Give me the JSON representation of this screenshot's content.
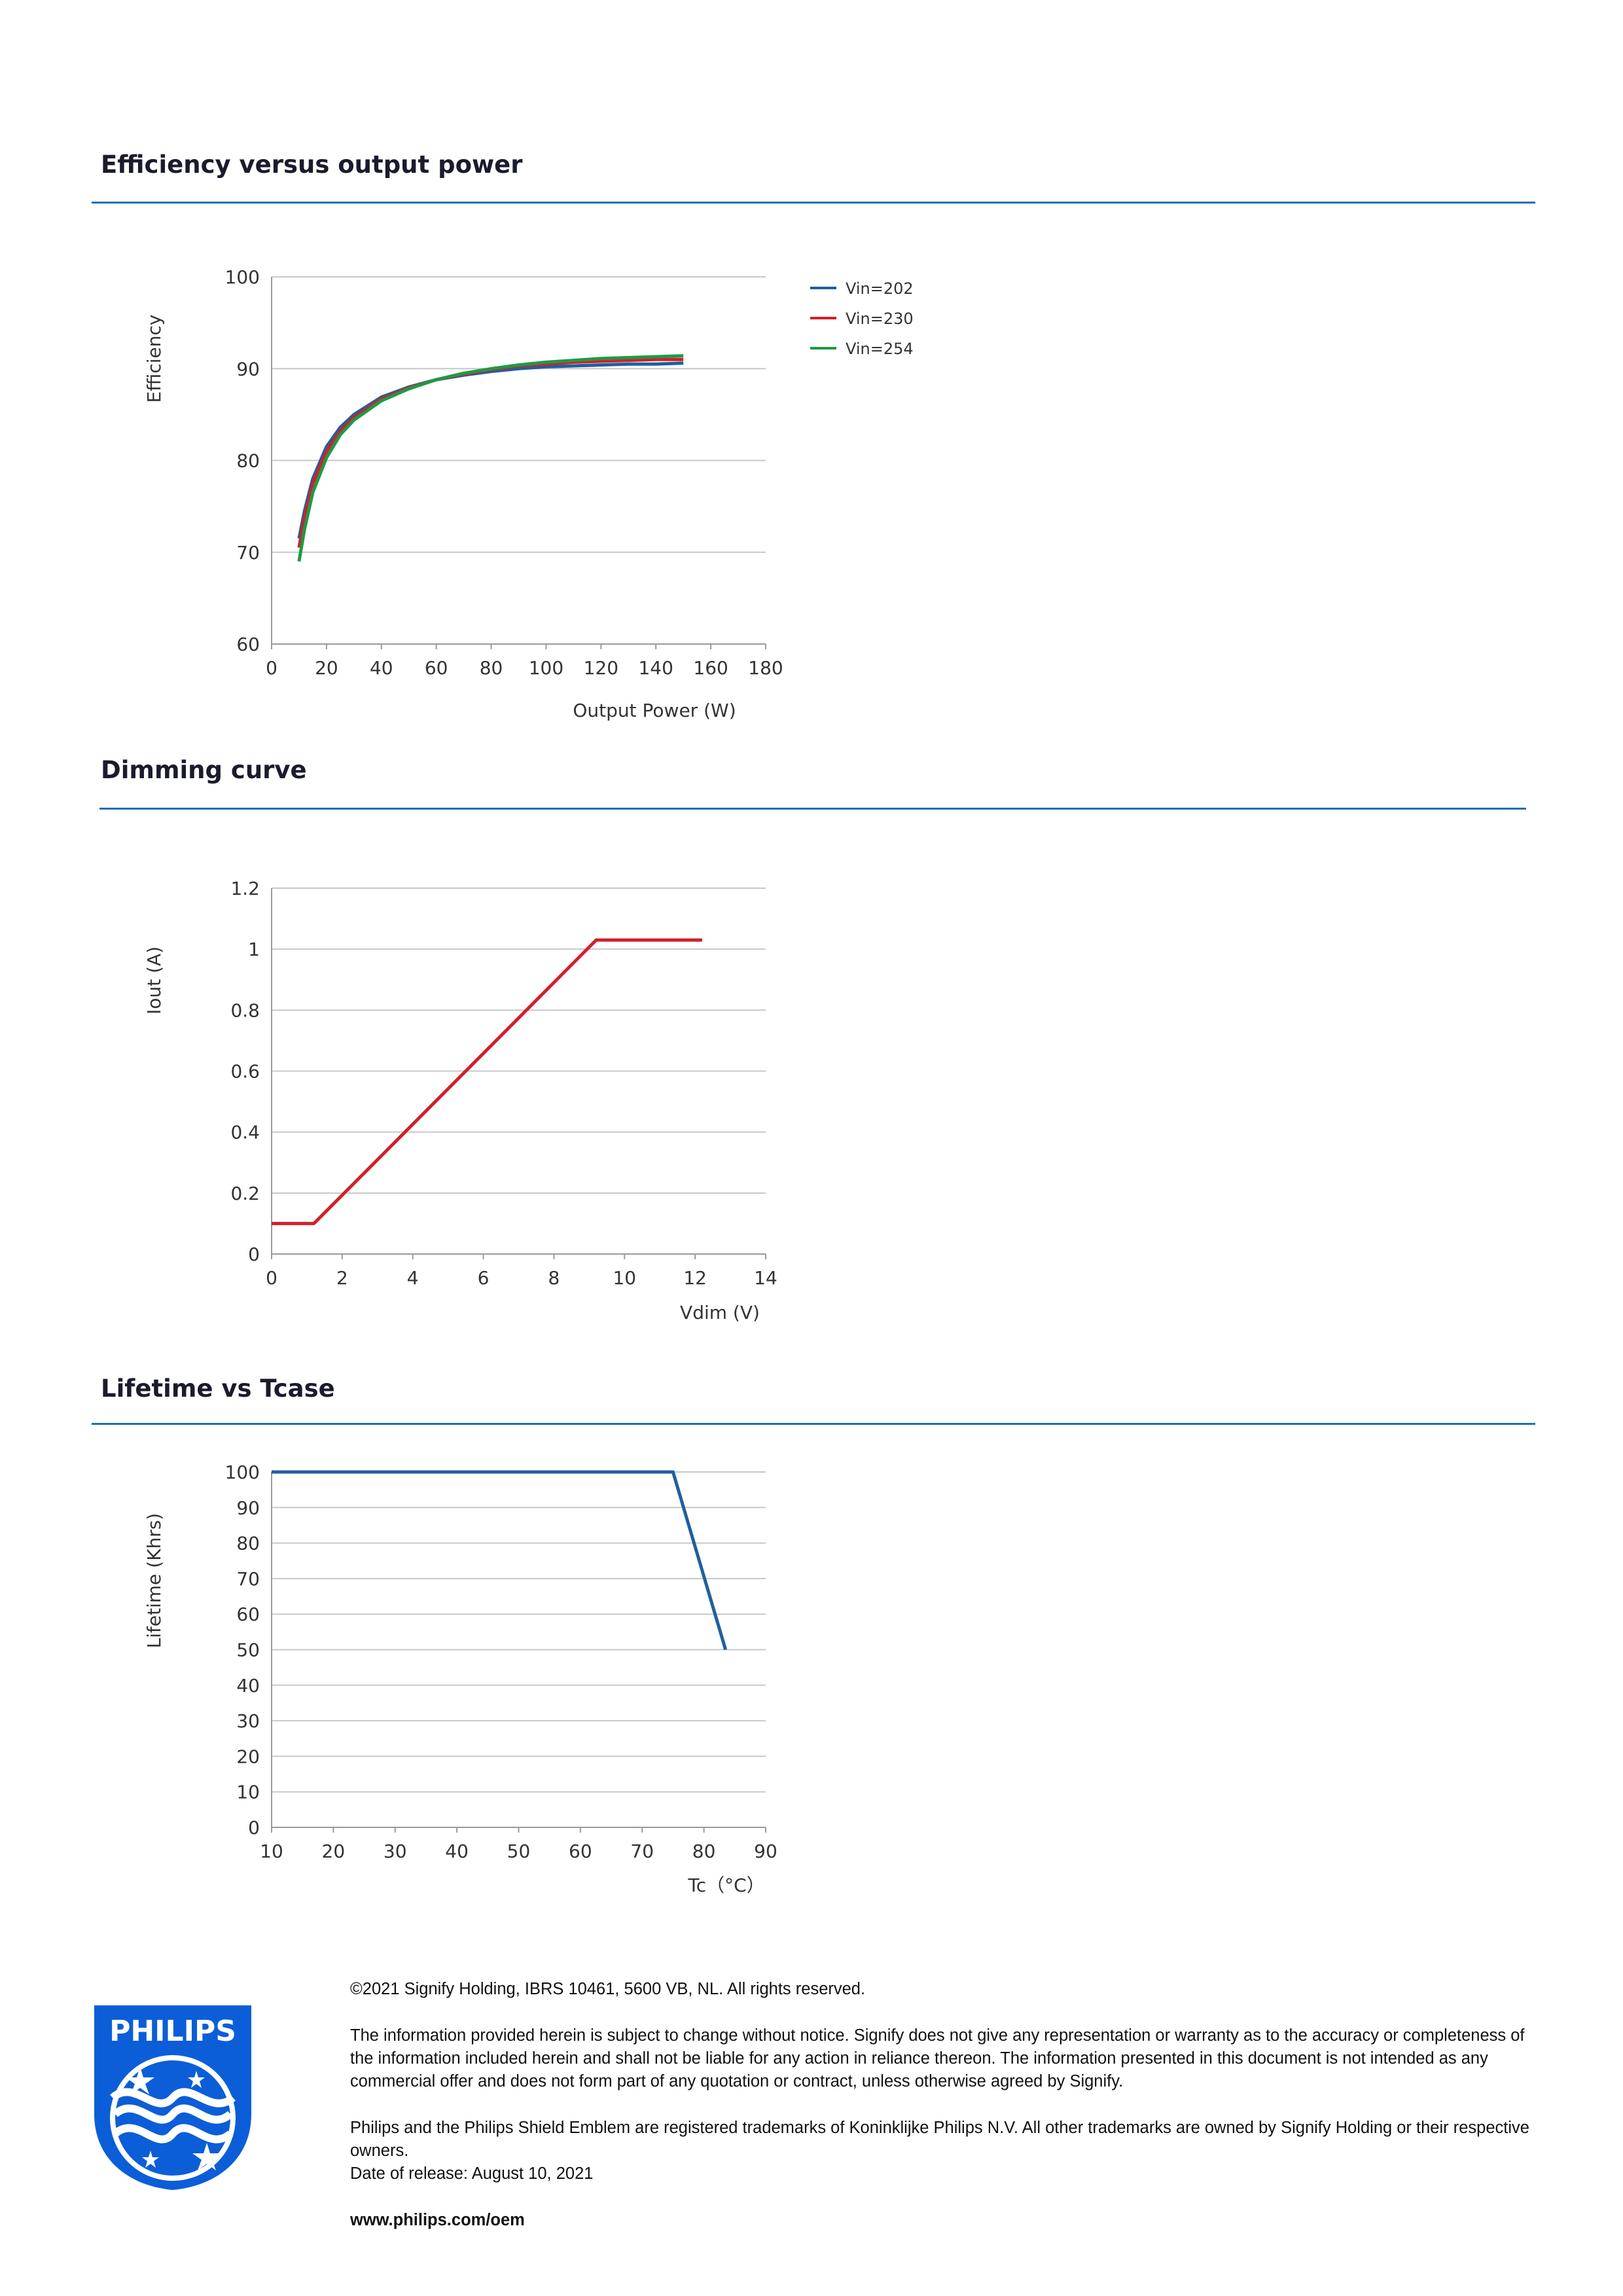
{
  "sections": [
    {
      "title": "Efficiency versus output power"
    },
    {
      "title": "Dimming curve"
    },
    {
      "title": "Lifetime vs Tcase"
    }
  ],
  "chart_data": [
    {
      "type": "line",
      "title": "Efficiency versus output power",
      "xlabel": "Output Power (W)",
      "ylabel": "Efficiency",
      "xlim": [
        0,
        180
      ],
      "ylim": [
        60,
        100
      ],
      "xticks": [
        0,
        20,
        40,
        60,
        80,
        100,
        120,
        140,
        160,
        180
      ],
      "yticks": [
        60,
        70,
        80,
        90,
        100
      ],
      "grid": "horizontal",
      "legend": "right",
      "series": [
        {
          "name": "Vin=202",
          "color": "#1f5f9e",
          "x": [
            10,
            12,
            15,
            20,
            25,
            30,
            40,
            50,
            60,
            70,
            80,
            90,
            100,
            110,
            120,
            130,
            140,
            150
          ],
          "y": [
            71.5,
            74.5,
            78,
            81.5,
            83.6,
            85,
            86.9,
            88,
            88.8,
            89.3,
            89.7,
            90,
            90.2,
            90.3,
            90.4,
            90.5,
            90.5,
            90.6
          ]
        },
        {
          "name": "Vin=230",
          "color": "#d0202c",
          "x": [
            10,
            12,
            15,
            20,
            25,
            30,
            40,
            50,
            60,
            70,
            80,
            90,
            100,
            110,
            120,
            130,
            140,
            150
          ],
          "y": [
            70.5,
            73.8,
            77.5,
            81,
            83.2,
            84.7,
            86.7,
            87.9,
            88.8,
            89.4,
            89.9,
            90.3,
            90.5,
            90.7,
            90.8,
            90.9,
            91,
            91
          ]
        },
        {
          "name": "Vin=254",
          "color": "#1e9a44",
          "x": [
            10,
            12,
            15,
            20,
            25,
            30,
            40,
            50,
            60,
            70,
            80,
            90,
            100,
            110,
            120,
            130,
            140,
            150
          ],
          "y": [
            69,
            72.5,
            76.5,
            80.3,
            82.8,
            84.4,
            86.5,
            87.8,
            88.8,
            89.5,
            90,
            90.4,
            90.7,
            90.9,
            91.1,
            91.2,
            91.3,
            91.4
          ]
        }
      ]
    },
    {
      "type": "line",
      "title": "Dimming curve",
      "xlabel": "Vdim (V)",
      "ylabel": "Iout (A)",
      "xlim": [
        0,
        14
      ],
      "ylim": [
        0,
        1.2
      ],
      "xticks": [
        0,
        2,
        4,
        6,
        8,
        10,
        12,
        14
      ],
      "yticks": [
        "0",
        "0.2",
        "0.4",
        "0.6",
        "0.8",
        "1",
        "1.2"
      ],
      "grid": "horizontal",
      "series": [
        {
          "name": "",
          "color": "#d0202c",
          "x": [
            0,
            1.2,
            9.2,
            12.2
          ],
          "y": [
            0.1,
            0.1,
            1.03,
            1.03
          ]
        }
      ]
    },
    {
      "type": "line",
      "title": "Lifetime vs Tcase",
      "xlabel": "Tc（°C）",
      "ylabel": "Lifetime (Khrs)",
      "xlim": [
        10,
        90
      ],
      "ylim": [
        0,
        100
      ],
      "xticks": [
        10,
        20,
        30,
        40,
        50,
        60,
        70,
        80,
        90
      ],
      "yticks": [
        0,
        10,
        20,
        30,
        40,
        50,
        60,
        70,
        80,
        90,
        100
      ],
      "grid": "horizontal",
      "series": [
        {
          "name": "",
          "color": "#1f5f9e",
          "x": [
            10,
            75,
            83.5
          ],
          "y": [
            100,
            100,
            50
          ]
        }
      ]
    }
  ],
  "footer": {
    "copyright": "©2021 Signify Holding, IBRS 10461, 5600 VB, NL. All rights reserved.",
    "disclaimer": "The information provided herein is subject to change without notice. Signify does not give any representation or warranty as to the accuracy or completeness of the information included herein and shall not be liable for any action in reliance thereon. The information presented in this document is not intended as any commercial offer and does not form part of any quotation or contract, unless otherwise agreed by Signify.",
    "trademark": "Philips and the Philips Shield Emblem are registered trademarks of Koninklijke Philips N.V. All other trademarks are owned by Signify Holding or their respective owners.",
    "release_date": "Date of release: August 10, 2021",
    "website": "www.philips.com/oem"
  },
  "logo": {
    "text": "PHILIPS",
    "color": "#0b5ed7"
  }
}
